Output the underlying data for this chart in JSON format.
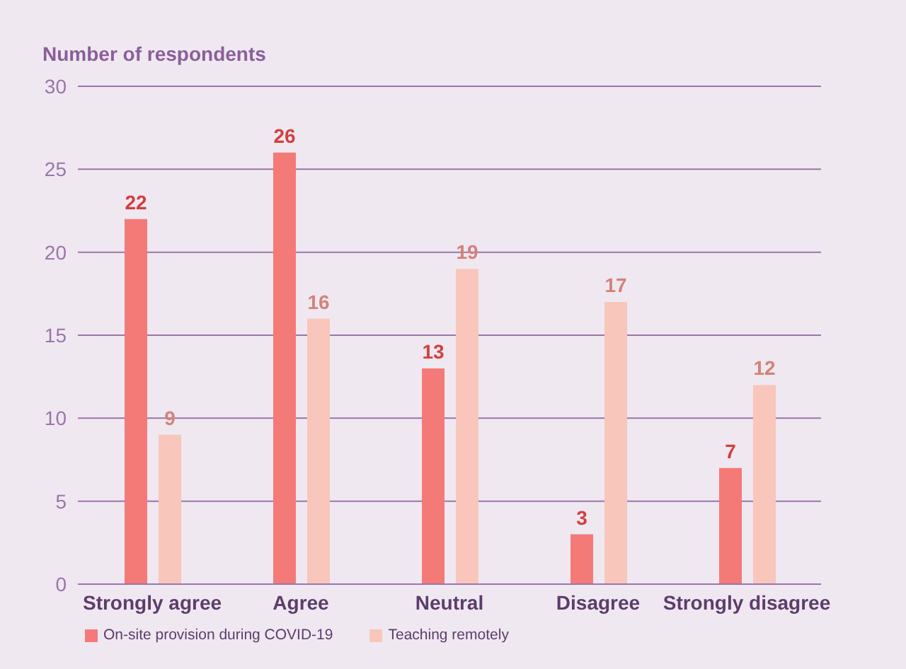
{
  "chart_data": {
    "type": "bar",
    "title": "Number of respondents",
    "categories": [
      "Strongly agree",
      "Agree",
      "Neutral",
      "Disagree",
      "Strongly disagree"
    ],
    "series": [
      {
        "name": "On-site provision during COVID-19",
        "color": "#f47a78",
        "values": [
          22,
          26,
          13,
          3,
          7
        ]
      },
      {
        "name": "Teaching remotely",
        "color": "#f9c6bb",
        "values": [
          9,
          16,
          19,
          17,
          12
        ]
      }
    ],
    "ylim": [
      0,
      30
    ],
    "yticks": [
      0,
      5,
      10,
      15,
      20,
      25,
      30
    ],
    "grid": "y",
    "legend": "bottom left",
    "data_labels": true
  }
}
